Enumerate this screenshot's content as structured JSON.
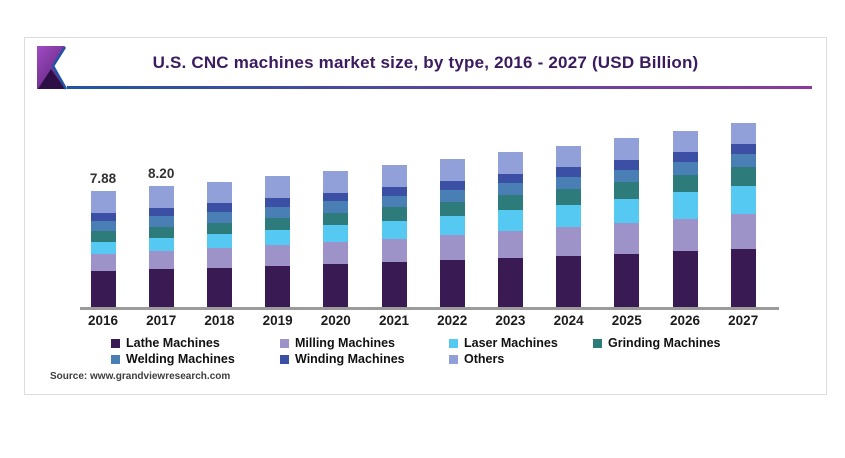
{
  "header": {
    "title": "U.S. CNC machines market size, by type, 2016 - 2027 (USD Billion)",
    "title_color": "#3b1b5e",
    "underline_gradient_left": "#2254a3",
    "underline_gradient_right": "#8a3a9e",
    "logo_colors": {
      "purple_light": "#a14cc4",
      "purple_dark": "#5c2378",
      "triangle_dark": "#2e0f45",
      "outline_blue": "#2353a5"
    }
  },
  "chart_data": {
    "type": "bar",
    "stacked": true,
    "title": "U.S. CNC machines market size, by type, 2016 - 2027 (USD Billion)",
    "unit": "USD Billion",
    "categories": [
      "2016",
      "2017",
      "2018",
      "2019",
      "2020",
      "2021",
      "2022",
      "2023",
      "2024",
      "2025",
      "2026",
      "2027"
    ],
    "series": [
      {
        "name": "Lathe Machines",
        "color": "#3a1a52",
        "values": [
          2.45,
          2.56,
          2.67,
          2.79,
          2.92,
          3.05,
          3.18,
          3.33,
          3.47,
          3.63,
          3.79,
          3.96
        ]
      },
      {
        "name": "Milling Machines",
        "color": "#9e93c9",
        "values": [
          1.17,
          1.25,
          1.33,
          1.42,
          1.51,
          1.61,
          1.72,
          1.84,
          1.96,
          2.09,
          2.23,
          2.38
        ]
      },
      {
        "name": "Laser Machines",
        "color": "#55c9f1",
        "values": [
          0.82,
          0.89,
          0.96,
          1.03,
          1.12,
          1.21,
          1.3,
          1.41,
          1.52,
          1.64,
          1.78,
          1.92
        ]
      },
      {
        "name": "Grinding Machines",
        "color": "#2e7b7c",
        "values": [
          0.7,
          0.74,
          0.78,
          0.82,
          0.86,
          0.91,
          0.96,
          1.01,
          1.06,
          1.12,
          1.18,
          1.24
        ]
      },
      {
        "name": "Welding Machines",
        "color": "#4a7fb6",
        "values": [
          0.7,
          0.72,
          0.73,
          0.75,
          0.77,
          0.78,
          0.8,
          0.82,
          0.84,
          0.86,
          0.88,
          0.9
        ]
      },
      {
        "name": "Winding Machines",
        "color": "#3b4fa4",
        "values": [
          0.58,
          0.59,
          0.6,
          0.61,
          0.61,
          0.62,
          0.63,
          0.64,
          0.65,
          0.66,
          0.67,
          0.68
        ]
      },
      {
        "name": "Others",
        "color": "#92a0da",
        "values": [
          1.47,
          1.47,
          1.47,
          1.47,
          1.47,
          1.47,
          1.47,
          1.47,
          1.47,
          1.47,
          1.47,
          1.47
        ]
      }
    ],
    "bar_value_labels": {
      "2016": "7.88",
      "2017": "8.20"
    },
    "totals_approx": [
      7.88,
      8.2,
      8.55,
      8.9,
      9.25,
      9.65,
      10.05,
      10.5,
      10.95,
      11.5,
      12.05,
      12.55
    ],
    "y_axis_visible": false,
    "gridlines": false,
    "x_axis_line_color": "#9b9b9b",
    "legend_position": "bottom",
    "legend_rows": [
      [
        "Lathe Machines",
        "Milling Machines",
        "Laser Machines",
        "Grinding Machines"
      ],
      [
        "Welding Machines",
        "Winding Machines",
        "Others"
      ]
    ]
  },
  "source": {
    "text": "Source: www.grandviewresearch.com"
  }
}
